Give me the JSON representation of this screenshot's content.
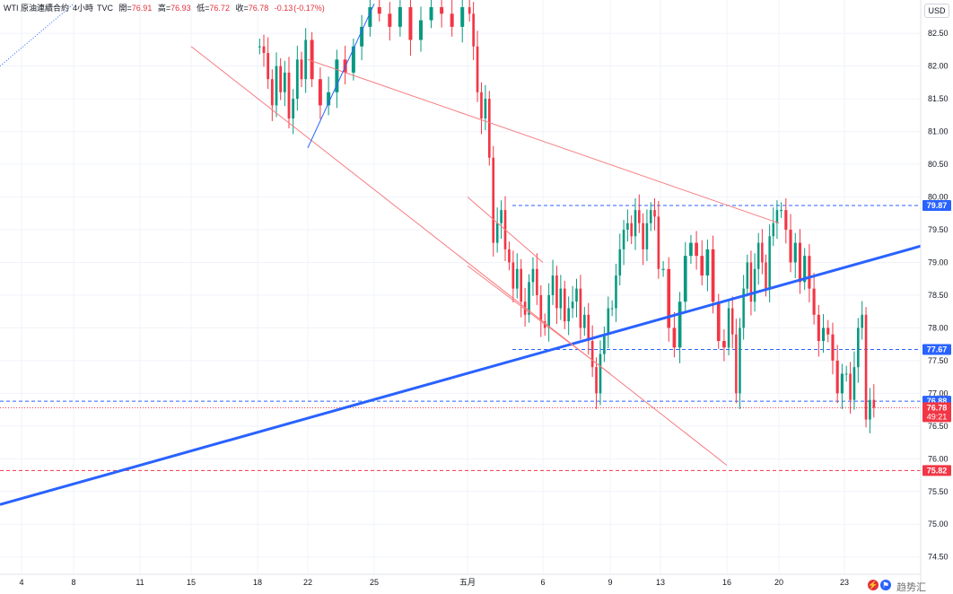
{
  "header": {
    "symbol": "WTI 原油連續合約",
    "interval": "4小時",
    "source": "TVC",
    "open_label": "開=",
    "open": "76.91",
    "high_label": "高=",
    "high": "76.93",
    "low_label": "低=",
    "low": "76.72",
    "close_label": "收=",
    "close": "76.78",
    "change": "-0.13",
    "change_pct": "(-0.17%)"
  },
  "currency_button": "USD",
  "brand": {
    "text": "趋势汇"
  },
  "colors": {
    "up": "#089981",
    "down": "#f23645",
    "trend_blue": "#2962ff",
    "channel_red": "#f77c80",
    "dotted_blue": "#2962ff",
    "dashed_blue": "#2962ff",
    "dashed_red": "#e2323c",
    "grid": "#f0f3fa",
    "axis_text": "#131722"
  },
  "chart_data": {
    "type": "candlestick",
    "title": "WTI 原油連續合約 · 4小時 · TVC",
    "y_axis": {
      "ticks": [
        "74.50",
        "75.00",
        "75.50",
        "76.00",
        "76.50",
        "77.00",
        "77.50",
        "78.00",
        "78.50",
        "79.00",
        "79.50",
        "80.00",
        "80.50",
        "81.00",
        "81.50",
        "82.00",
        "82.50"
      ],
      "range": [
        74.4,
        82.9
      ]
    },
    "x_axis": {
      "ticks": [
        "4",
        "8",
        "11",
        "15",
        "18",
        "22",
        "25",
        "五月",
        "6",
        "9",
        "13",
        "16",
        "20",
        "23"
      ]
    },
    "price_labels": [
      {
        "value": "79.87",
        "color": "#2962ff"
      },
      {
        "value": "77.67",
        "color": "#2962ff"
      },
      {
        "value": "76.88",
        "color": "#2962ff"
      },
      {
        "value": "76.78",
        "color": "#f23645",
        "countdown": "49:21"
      },
      {
        "value": "75.82",
        "color": "#f23645"
      }
    ],
    "horizontal_lines": [
      {
        "y": 79.87,
        "style": "dashed",
        "color": "#2962ff",
        "from_date": "五月"
      },
      {
        "y": 77.67,
        "style": "dashed",
        "color": "#2962ff",
        "from_date": "五月"
      },
      {
        "y": 76.88,
        "style": "dashed",
        "color": "#2962ff"
      },
      {
        "y": 76.78,
        "style": "dotted",
        "color": "#f23645"
      },
      {
        "y": 75.82,
        "style": "dashed",
        "color": "#f23645"
      }
    ],
    "trend_lines": [
      {
        "color": "#2962ff",
        "style": "thick",
        "from": [
          "4",
          75.3
        ],
        "to": [
          "23",
          79.25
        ]
      },
      {
        "color": "#f77c80",
        "style": "thin",
        "from": [
          "15",
          82.3
        ],
        "to": [
          "16",
          75.9
        ]
      },
      {
        "color": "#f77c80",
        "style": "thin",
        "from": [
          "22",
          82.1
        ],
        "to": [
          "20",
          79.6
        ]
      },
      {
        "color": "#f77c80",
        "style": "thin",
        "from": [
          "五月",
          80.0
        ],
        "to": [
          "6",
          79.0
        ]
      },
      {
        "color": "#f77c80",
        "style": "thin",
        "from": [
          "五月",
          78.95
        ],
        "to": [
          "9",
          77.3
        ]
      },
      {
        "color": "#2962ff",
        "style": "thin",
        "from": [
          "22",
          80.75
        ],
        "to": [
          "25",
          82.95
        ]
      },
      {
        "color": "#2962ff",
        "style": "dotted",
        "from": [
          "4",
          82.0
        ],
        "to": [
          "8",
          82.95
        ]
      }
    ],
    "segments": [
      {
        "x_from": "18",
        "x_to": "22",
        "values": [
          82.3,
          82.2,
          81.8,
          81.4,
          82.0,
          81.6,
          81.9,
          81.2,
          81.5,
          82.1,
          81.8,
          82.4
        ]
      },
      {
        "x_from": "22",
        "x_to": "25",
        "values": [
          81.8,
          81.4,
          81.6,
          82.1,
          81.9,
          82.3,
          82.6,
          82.9
        ]
      },
      {
        "x_from": "25",
        "x_to": "五月",
        "values": [
          82.8,
          82.6,
          82.9,
          82.4,
          82.7,
          82.9,
          82.8,
          82.6,
          82.9
        ]
      },
      {
        "x_from": "五月",
        "x_to": "6",
        "values": [
          82.8,
          82.3,
          81.6,
          81.2,
          81.5,
          80.6,
          79.3,
          79.6,
          79.8,
          79.2,
          79.0,
          78.6,
          78.9,
          78.4,
          78.2,
          78.7,
          78.9,
          78.5,
          78.1
        ]
      },
      {
        "x_from": "6",
        "x_to": "9",
        "values": [
          78.0,
          78.5,
          78.8,
          78.3,
          78.6,
          78.1,
          78.3,
          78.4,
          78.6,
          78.0,
          78.2,
          77.8,
          77.4,
          77.0,
          77.6,
          77.9,
          78.3
        ]
      },
      {
        "x_from": "9",
        "x_to": "13",
        "values": [
          78.3,
          78.8,
          79.2,
          79.5,
          79.6,
          79.4,
          79.8,
          79.6,
          79.2,
          79.6,
          79.8,
          79.7,
          78.9
        ]
      },
      {
        "x_from": "13",
        "x_to": "16",
        "values": [
          78.9,
          78.0,
          77.7,
          78.4,
          79.1,
          79.3,
          79.1,
          78.8,
          79.2,
          78.4,
          77.8,
          77.7
        ]
      },
      {
        "x_from": "16",
        "x_to": "20",
        "values": [
          78.3,
          77.9,
          77.0,
          78.0,
          78.6,
          79.0,
          78.4,
          78.9,
          79.3,
          79.0,
          78.6,
          79.4,
          79.6,
          79.8
        ]
      },
      {
        "x_from": "20",
        "x_to": "23",
        "values": [
          79.8,
          79.5,
          79.0,
          79.3,
          78.7,
          79.1,
          78.6,
          78.2,
          77.8,
          78.0,
          77.9,
          77.5,
          77.0,
          77.3
        ]
      },
      {
        "x_from": "23",
        "x_to": "end",
        "values": [
          77.3,
          76.9,
          77.4,
          78.0,
          78.2,
          76.6,
          76.9,
          76.78
        ]
      }
    ],
    "grid": true,
    "legend": "none"
  }
}
